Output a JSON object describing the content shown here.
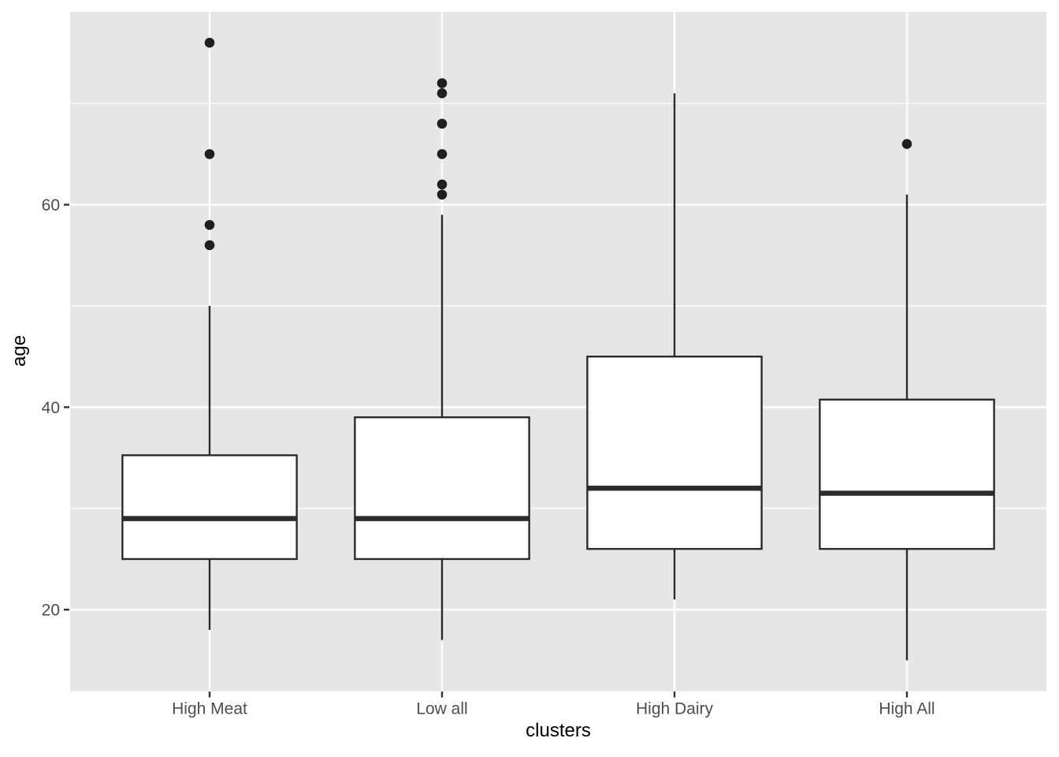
{
  "chart_data": {
    "type": "boxplot",
    "title": "",
    "xlabel": "clusters",
    "ylabel": "age",
    "categories": [
      "High Meat",
      "Low all",
      "High Dairy",
      "High All"
    ],
    "series": [
      {
        "name": "High Meat",
        "whisker_low": 18,
        "q1": 25,
        "median": 29,
        "q3": 35.25,
        "whisker_high": 50,
        "outliers": [
          56,
          58,
          65,
          76
        ]
      },
      {
        "name": "Low all",
        "whisker_low": 17,
        "q1": 25,
        "median": 29,
        "q3": 39,
        "whisker_high": 59,
        "outliers": [
          61,
          62,
          65,
          68,
          71,
          72
        ]
      },
      {
        "name": "High Dairy",
        "whisker_low": 21,
        "q1": 26,
        "median": 32,
        "q3": 45,
        "whisker_high": 71,
        "outliers": []
      },
      {
        "name": "High All",
        "whisker_low": 15,
        "q1": 26,
        "median": 31.5,
        "q3": 40.75,
        "whisker_high": 61,
        "outliers": [
          66
        ]
      }
    ],
    "y_axis": {
      "tick_values": [
        20,
        40,
        60
      ],
      "tick_labels": [
        "20",
        "40",
        "60"
      ],
      "minor_tick_values": [
        30,
        50,
        70
      ],
      "ylim": [
        11.95,
        79.05
      ]
    },
    "x_axis": {
      "tick_labels": [
        "High Meat",
        "Low all",
        "High Dairy",
        "High All"
      ]
    },
    "legend": "none",
    "grid": "on",
    "style": {
      "panel_bg": "#E6E6E6",
      "grid_color": "#FFFFFF",
      "box_fill": "#FFFFFF",
      "line_color": "#2B2B2B",
      "outlier_color": "#1F1F1F",
      "tick_mark_color": "#333333",
      "tick_text_color": "#4D4D4D",
      "axis_title_color": "#000000"
    }
  }
}
